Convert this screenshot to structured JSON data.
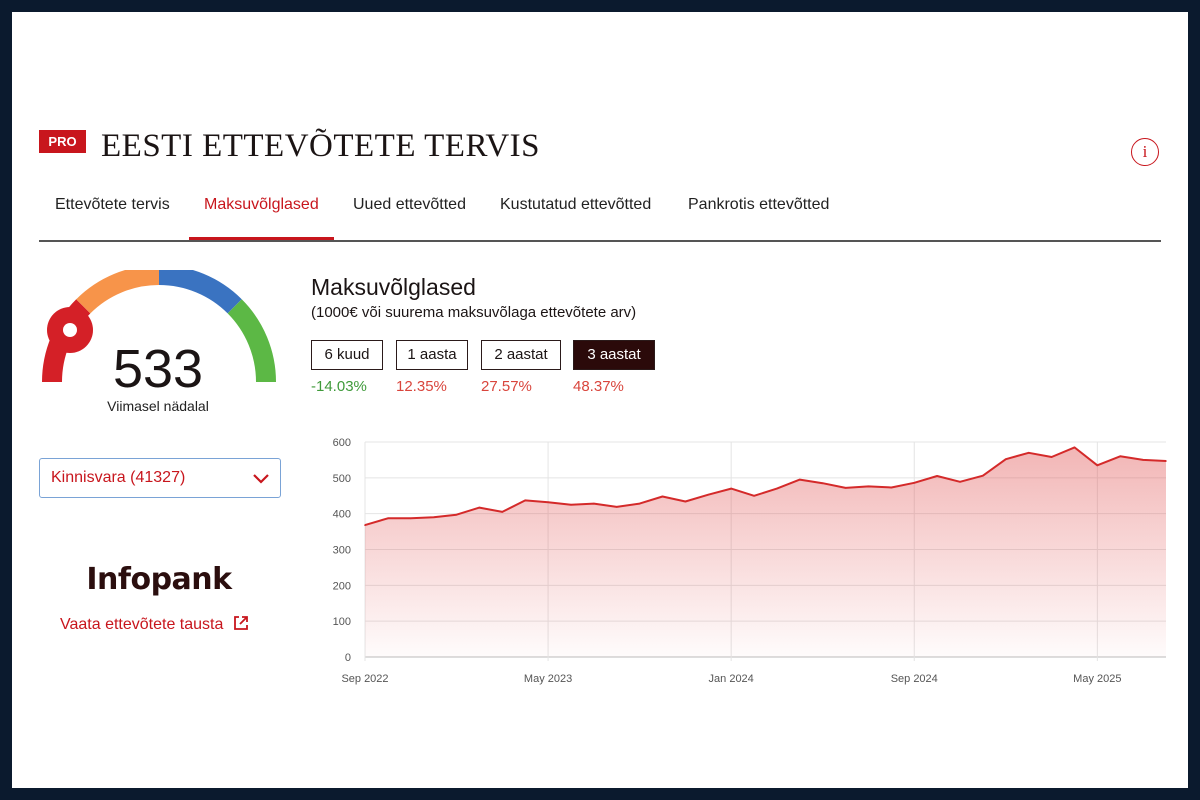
{
  "header": {
    "badge": "PRO",
    "title": "EESTI ETTEVÕTETE TERVIS",
    "info_icon": "info-icon",
    "info_glyph": "i"
  },
  "tabs": [
    {
      "label": "Ettevõtete tervis",
      "active": false
    },
    {
      "label": "Maksuvõlglased",
      "active": true
    },
    {
      "label": "Uued ettevõtted",
      "active": false
    },
    {
      "label": "Kustutatud ettevõtted",
      "active": false
    },
    {
      "label": "Pankrotis ettevõtted",
      "active": false
    }
  ],
  "gauge": {
    "value": "533",
    "label": "Viimasel nädalal",
    "segment_colors": [
      "#d42027",
      "#f7944a",
      "#3a73c1",
      "#5cb845"
    ],
    "needle_color": "#d42027"
  },
  "dropdown": {
    "selected": "Kinnisvara (41327)",
    "icon": "chevron-down-icon"
  },
  "brand": {
    "name": "Infopank",
    "link_label": "Vaata ettevõtete tausta",
    "link_icon": "external-link-icon"
  },
  "chart_panel": {
    "title": "Maksuvõlglased",
    "subtitle": "(1000€ või suurema maksuvõlaga ettevõtete arv)",
    "ranges": [
      {
        "label": "6 kuud",
        "change": "-14.03%",
        "trend": "down",
        "active": false
      },
      {
        "label": "1 aasta",
        "change": "12.35%",
        "trend": "up",
        "active": false
      },
      {
        "label": "2 aastat",
        "change": "27.57%",
        "trend": "up",
        "active": false
      },
      {
        "label": "3 aastat",
        "change": "48.37%",
        "trend": "up",
        "active": true
      }
    ]
  },
  "colors": {
    "accent": "#c8161d",
    "positive_change": "#3f9a3a",
    "negative_change": "#d9453c",
    "line": "#d42a2a"
  },
  "chart_data": {
    "type": "area",
    "title": "",
    "xlabel": "",
    "ylabel": "",
    "ylim": [
      0,
      600
    ],
    "yticks": [
      0,
      100,
      200,
      300,
      400,
      500,
      600
    ],
    "x_tick_labels": [
      "Sep 2022",
      "May 2023",
      "Jan 2024",
      "Sep 2024",
      "May 2025"
    ],
    "x_tick_months": [
      "2022-09",
      "2023-05",
      "2024-01",
      "2024-09",
      "2025-05"
    ],
    "x_range": [
      "2022-09",
      "2025-08"
    ],
    "grid": true,
    "series": [
      {
        "name": "",
        "x": [
          "2022-09",
          "2022-10",
          "2022-11",
          "2022-12",
          "2023-01",
          "2023-02",
          "2023-03",
          "2023-04",
          "2023-05",
          "2023-06",
          "2023-07",
          "2023-08",
          "2023-09",
          "2023-10",
          "2023-11",
          "2023-12",
          "2024-01",
          "2024-02",
          "2024-03",
          "2024-04",
          "2024-05",
          "2024-06",
          "2024-07",
          "2024-08",
          "2024-09",
          "2024-10",
          "2024-11",
          "2024-12",
          "2025-01",
          "2025-02",
          "2025-03",
          "2025-04",
          "2025-05",
          "2025-06",
          "2025-07",
          "2025-08"
        ],
        "values": [
          368,
          387,
          387,
          390,
          397,
          417,
          405,
          437,
          432,
          425,
          428,
          419,
          428,
          448,
          434,
          453,
          470,
          450,
          470,
          495,
          485,
          472,
          476,
          473,
          486,
          505,
          489,
          506,
          552,
          570,
          558,
          585,
          535,
          560,
          550,
          547
        ]
      }
    ]
  }
}
